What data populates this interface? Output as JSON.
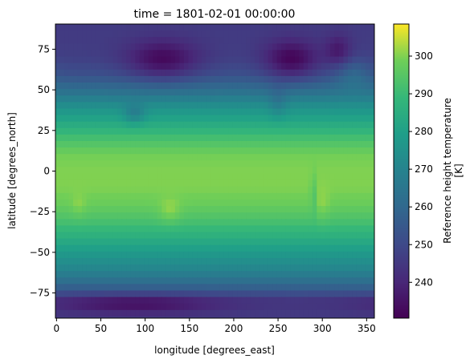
{
  "chart_data": {
    "type": "heatmap",
    "title": "time = 1801-02-01 00:00:00",
    "xlabel": "longitude [degrees_east]",
    "ylabel": "latitude [degrees_north]",
    "xlim": [
      -1.25,
      358.75
    ],
    "ylim": [
      -90.5,
      90.5
    ],
    "x_ticks": [
      0,
      50,
      100,
      150,
      200,
      250,
      300,
      350
    ],
    "y_ticks": [
      -75,
      -50,
      -25,
      0,
      25,
      50,
      75
    ],
    "colorbar": {
      "label_line1": "Reference height temperature",
      "label_line2": "[K]",
      "vmin": 230.5,
      "vmax": 308.5,
      "ticks": [
        240,
        250,
        260,
        270,
        280,
        290,
        300
      ],
      "colormap": "viridis"
    },
    "grid": false,
    "z_approx_lat_profile": {
      "lat": [
        -90,
        -80,
        -70,
        -60,
        -50,
        -40,
        -30,
        -20,
        -10,
        0,
        10,
        20,
        30,
        40,
        50,
        60,
        70,
        80,
        90
      ],
      "temperature_K": [
        246,
        244,
        260,
        271,
        278,
        286,
        293,
        298,
        300,
        300,
        299,
        292,
        283,
        274,
        262,
        252,
        247,
        246,
        246
      ]
    }
  }
}
